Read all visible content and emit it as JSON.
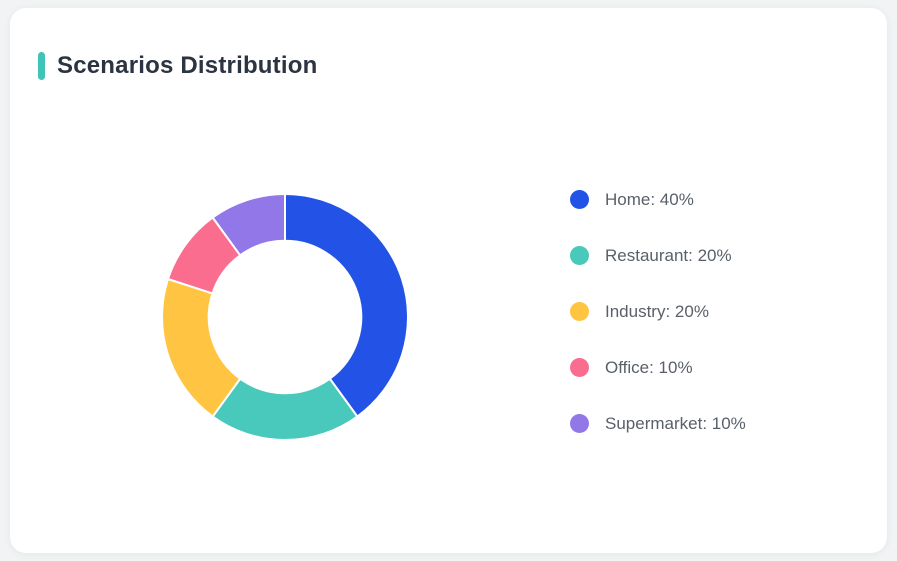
{
  "header": {
    "title": "Scenarios Distribution",
    "accent_color": "#40c4b7"
  },
  "chart_data": {
    "type": "pie",
    "subtype": "donut",
    "title": "Scenarios Distribution",
    "categories": [
      "Home",
      "Restaurant",
      "Industry",
      "Office",
      "Supermarket"
    ],
    "values": [
      40,
      20,
      20,
      10,
      10
    ],
    "unit": "%",
    "colors": [
      "#2253e6",
      "#48c9bb",
      "#ffc542",
      "#fb6d8e",
      "#9177e7"
    ],
    "legend_labels": [
      "Home: 40%",
      "Restaurant: 20%",
      "Industry: 20%",
      "Office: 10%",
      "Supermarket: 10%"
    ],
    "legend_position": "right",
    "start_angle_deg": 0,
    "direction": "clockwise",
    "inner_radius_ratio": 0.62,
    "segment_border_color": "#ffffff",
    "segment_border_width": 2
  }
}
